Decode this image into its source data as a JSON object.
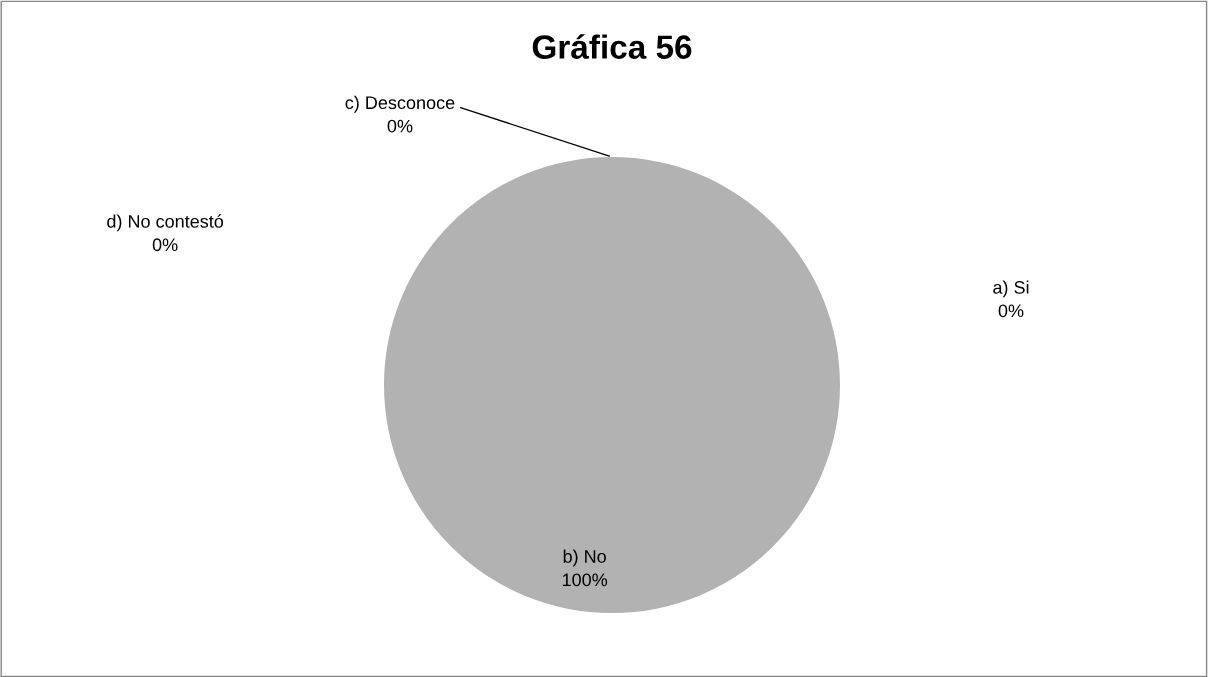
{
  "chart_data": {
    "type": "pie",
    "title": "Gráfica 56",
    "categories": [
      "a) Si",
      "b) No",
      "c) Desconoce",
      "d) No contestó"
    ],
    "values": [
      0,
      100,
      0,
      0
    ],
    "value_labels": [
      "0%",
      "100%",
      "0%",
      "0%"
    ],
    "colors": [
      "#4f81bd",
      "#b2b2b2",
      "#9bbb59",
      "#8064a2"
    ],
    "legend": false
  }
}
